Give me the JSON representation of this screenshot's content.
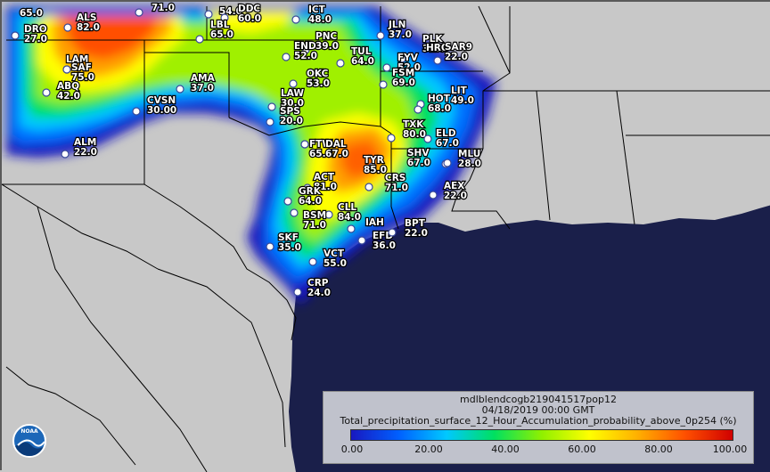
{
  "map": {
    "product_id": "mdlblendcogb219041517pop12",
    "valid_time": "04/18/2019 00:00 GMT",
    "variable": "Total_precipitation_surface_12_Hour_Accumulation_probability_above_0p254 (%)",
    "region": "Southern Plains / Texas",
    "colors": {
      "background": "#c8c8c8",
      "gulf_water": "#1a1f4a",
      "state_lines": "#000000",
      "scale": [
        "#1818c0",
        "#0060ff",
        "#00c8ff",
        "#00e060",
        "#90f000",
        "#ffff00",
        "#ffb000",
        "#ff5000",
        "#d00000"
      ]
    }
  },
  "legend": {
    "title": "mdlblendcogb219041517pop12",
    "time": "04/18/2019 00:00 GMT",
    "variable": "Total_precipitation_surface_12_Hour_Accumulation_probability_above_0p254 (%)",
    "ticks": [
      "0.00",
      "20.00",
      "40.00",
      "60.00",
      "80.00",
      "100.00"
    ]
  },
  "logo": {
    "text": "NOAA",
    "icon": "noaa-logo"
  },
  "stations": [
    {
      "id": "",
      "value": "65.0"
    },
    {
      "id": "DRO",
      "value": "27.0"
    },
    {
      "id": "ALS",
      "value": "82.0"
    },
    {
      "id": "",
      "value": "71.0"
    },
    {
      "id": "",
      "value": "54.0"
    },
    {
      "id": "DDC",
      "value": "60.0"
    },
    {
      "id": "ICT",
      "value": "48.0"
    },
    {
      "id": "LBL",
      "value": "65.0"
    },
    {
      "id": "JLN",
      "value": "37.0"
    },
    {
      "id": "PNC",
      "value": "39.0"
    },
    {
      "id": "END",
      "value": "52.0"
    },
    {
      "id": "PLK",
      "value": "31.0"
    },
    {
      "id": "HRO",
      "value": ""
    },
    {
      "id": "SAR9",
      "value": "22.0"
    },
    {
      "id": "LAM",
      "value": ""
    },
    {
      "id": "SAF",
      "value": "75.0"
    },
    {
      "id": "ABQ",
      "value": "42.0"
    },
    {
      "id": "TUL",
      "value": "64.0"
    },
    {
      "id": "FYV",
      "value": "52.0"
    },
    {
      "id": "OKC",
      "value": "53.0"
    },
    {
      "id": "FSM",
      "value": "69.0"
    },
    {
      "id": "AMA",
      "value": "37.0"
    },
    {
      "id": "LIT",
      "value": "49.0"
    },
    {
      "id": "LAW",
      "value": "30.0"
    },
    {
      "id": "HOT",
      "value": "68.0"
    },
    {
      "id": "CVSN",
      "value": "30.00"
    },
    {
      "id": "SPS",
      "value": "20.0"
    },
    {
      "id": "TXK",
      "value": "80.0"
    },
    {
      "id": "ELD",
      "value": "67.0"
    },
    {
      "id": "ALM",
      "value": "22.0"
    },
    {
      "id": "FTW",
      "value": "65.0"
    },
    {
      "id": "DAL",
      "value": "67.0"
    },
    {
      "id": "TYR",
      "value": "85.0"
    },
    {
      "id": "SHV",
      "value": "67.0"
    },
    {
      "id": "MLU",
      "value": "28.0"
    },
    {
      "id": "ACT",
      "value": "81.0"
    },
    {
      "id": "CRS",
      "value": "71.0"
    },
    {
      "id": "AEX",
      "value": "22.0"
    },
    {
      "id": "GRK",
      "value": "64.0"
    },
    {
      "id": "CLL",
      "value": "84.0"
    },
    {
      "id": "BSM",
      "value": "71.0"
    },
    {
      "id": "IAH",
      "value": ""
    },
    {
      "id": "EFD",
      "value": "36.0"
    },
    {
      "id": "BPT",
      "value": "22.0"
    },
    {
      "id": "SKF",
      "value": "35.0"
    },
    {
      "id": "VCT",
      "value": "55.0"
    },
    {
      "id": "CRP",
      "value": "24.0"
    }
  ]
}
